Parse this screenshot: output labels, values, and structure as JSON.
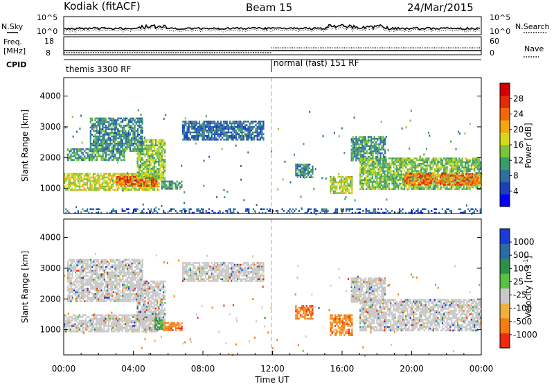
{
  "header": {
    "station": "Kodiak (fitACF)",
    "beam": "Beam 15",
    "date": "24/Mar/2015"
  },
  "labels": {
    "nsky": "N.Sky",
    "nsearch": "N.Search",
    "freq_line1": "Freq.",
    "freq_line2": "[MHz]",
    "nave": "Nave",
    "cpid": "CPID",
    "ylabel": "Slant Range [km]",
    "xlabel": "Time UT"
  },
  "noise_axis": {
    "left_ticks": [
      "10^5",
      "10^0"
    ],
    "right_ticks": [
      "10^5",
      "10^0"
    ]
  },
  "freq_axis": {
    "left_ticks": [
      "18",
      "8"
    ],
    "right_ticks": [
      "60",
      "0"
    ]
  },
  "cpid_segments": [
    {
      "start_hour": 0,
      "label": "themis 3300 RF"
    },
    {
      "start_hour": 12,
      "label": "normal (fast) 151 RF"
    }
  ],
  "x_ticks": [
    "00:00",
    "04:00",
    "08:00",
    "12:00",
    "16:00",
    "20:00",
    "00:00"
  ],
  "y_ticks": [
    "1000",
    "2000",
    "3000",
    "4000"
  ],
  "power_colorbar": {
    "label": "Power [dB]",
    "ticks": [
      "4",
      "8",
      "12",
      "16",
      "20",
      "24",
      "28"
    ],
    "colors": [
      "#0000ff",
      "#1d3fb8",
      "#2e6f9e",
      "#3b9b6a",
      "#7ac43a",
      "#d8d81a",
      "#f5a60f",
      "#f06a0c",
      "#e02a0a",
      "#d00000"
    ]
  },
  "velocity_colorbar": {
    "label": "Velocity [m s",
    "label_superscript": "-1",
    "label_close": "]",
    "ticks": [
      "1000",
      "500",
      "100",
      "25",
      "-25",
      "-100",
      "-500",
      "-1000"
    ],
    "colors": [
      "#1a3bd8",
      "#2d6aa8",
      "#2f8f4a",
      "#58c042",
      "#c8c8c8",
      "#f0b040",
      "#f57e12",
      "#ee2a10"
    ]
  },
  "chart_data": [
    {
      "type": "heatmap",
      "title": "Power",
      "xlabel": "",
      "ylabel": "Slant Range [km]",
      "xlim": [
        0,
        24
      ],
      "ylim": [
        180,
        4600
      ],
      "colorbar": "Power [dB]",
      "clim": [
        0,
        30
      ],
      "regions": [
        {
          "t0": 0.0,
          "t1": 5.5,
          "r0": 950,
          "r1": 1500,
          "level": 16
        },
        {
          "t0": 3.0,
          "t1": 5.3,
          "r0": 1050,
          "r1": 1400,
          "level": 24
        },
        {
          "t0": 4.2,
          "t1": 5.8,
          "r0": 1300,
          "r1": 2600,
          "level": 14
        },
        {
          "t0": 0.2,
          "t1": 3.5,
          "r0": 1900,
          "r1": 2300,
          "level": 10
        },
        {
          "t0": 1.5,
          "t1": 4.5,
          "r0": 2200,
          "r1": 3300,
          "level": 9
        },
        {
          "t0": 5.6,
          "t1": 6.8,
          "r0": 1000,
          "r1": 1250,
          "level": 10
        },
        {
          "t0": 6.8,
          "t1": 11.5,
          "r0": 2600,
          "r1": 3200,
          "level": 7
        },
        {
          "t0": 13.3,
          "t1": 14.3,
          "r0": 1350,
          "r1": 1800,
          "level": 9
        },
        {
          "t0": 15.3,
          "t1": 16.6,
          "r0": 850,
          "r1": 1400,
          "level": 15
        },
        {
          "t0": 16.5,
          "t1": 18.5,
          "r0": 1900,
          "r1": 2700,
          "level": 10
        },
        {
          "t0": 17.0,
          "t1": 24.0,
          "r0": 1000,
          "r1": 2000,
          "level": 13
        },
        {
          "t0": 19.5,
          "t1": 24.0,
          "r0": 1100,
          "r1": 1500,
          "level": 22
        },
        {
          "t0": 0.0,
          "t1": 24.0,
          "r0": 200,
          "r1": 350,
          "level": 6
        }
      ]
    },
    {
      "type": "heatmap",
      "title": "Velocity",
      "xlabel": "Time UT",
      "ylabel": "Slant Range [km]",
      "xlim": [
        0,
        24
      ],
      "ylim": [
        180,
        4600
      ],
      "colorbar": "Velocity [m s-1]",
      "clim": [
        -1000,
        1000
      ],
      "regions": [
        {
          "t0": 0.0,
          "t1": 5.5,
          "r0": 950,
          "r1": 1500,
          "velocity": 0
        },
        {
          "t0": 4.2,
          "t1": 5.8,
          "r0": 1300,
          "r1": 2600,
          "velocity": 0
        },
        {
          "t0": 0.2,
          "t1": 4.5,
          "r0": 1900,
          "r1": 3300,
          "velocity": 0
        },
        {
          "t0": 5.2,
          "t1": 5.7,
          "r0": 1000,
          "r1": 1400,
          "velocity": 150
        },
        {
          "t0": 5.7,
          "t1": 6.8,
          "r0": 1000,
          "r1": 1250,
          "velocity": -300
        },
        {
          "t0": 6.8,
          "t1": 11.5,
          "r0": 2600,
          "r1": 3200,
          "velocity": 0
        },
        {
          "t0": 13.3,
          "t1": 14.3,
          "r0": 1350,
          "r1": 1800,
          "velocity": -300
        },
        {
          "t0": 15.3,
          "t1": 16.6,
          "r0": 850,
          "r1": 1500,
          "velocity": -300
        },
        {
          "t0": 16.5,
          "t1": 18.5,
          "r0": 1900,
          "r1": 2700,
          "velocity": 0
        },
        {
          "t0": 17.0,
          "t1": 24.0,
          "r0": 1000,
          "r1": 2000,
          "velocity": 0
        }
      ]
    }
  ]
}
